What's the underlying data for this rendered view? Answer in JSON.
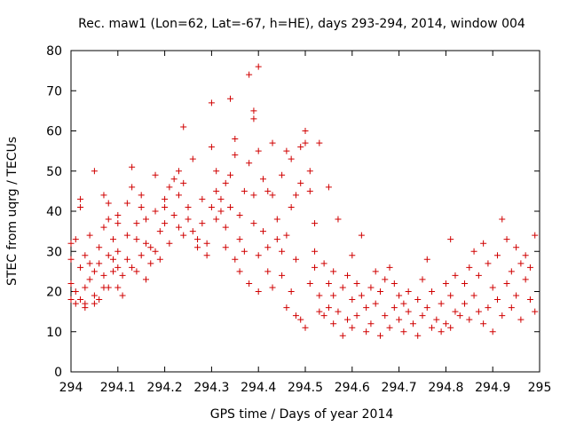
{
  "chart_data": {
    "type": "scatter",
    "title": "Rec. maw1 (Lon=62, Lat=-67, h=HE), days 293-294, 2014, window 004",
    "xlabel": "GPS time / Days of year 2014",
    "ylabel": "STEC from uqrg / TECUs",
    "xlim": [
      294,
      295
    ],
    "ylim": [
      0,
      80
    ],
    "xticks": [
      "294",
      "294.1",
      "294.2",
      "294.3",
      "294.4",
      "294.5",
      "294.6",
      "294.7",
      "294.8",
      "294.9",
      "295"
    ],
    "yticks": [
      "0",
      "10",
      "20",
      "30",
      "40",
      "50",
      "60",
      "70",
      "80"
    ],
    "marker": "+",
    "color": "#d00000",
    "series": [
      {
        "name": "STEC",
        "points": [
          [
            294.0,
            18
          ],
          [
            294.0,
            22
          ],
          [
            294.0,
            28
          ],
          [
            294.0,
            32
          ],
          [
            294.01,
            33
          ],
          [
            294.01,
            17
          ],
          [
            294.01,
            20
          ],
          [
            294.02,
            41
          ],
          [
            294.02,
            43
          ],
          [
            294.02,
            26
          ],
          [
            294.02,
            18
          ],
          [
            294.03,
            16
          ],
          [
            294.03,
            21
          ],
          [
            294.03,
            29
          ],
          [
            294.03,
            17
          ],
          [
            294.04,
            34
          ],
          [
            294.04,
            27
          ],
          [
            294.04,
            23
          ],
          [
            294.05,
            19
          ],
          [
            294.05,
            25
          ],
          [
            294.05,
            50
          ],
          [
            294.05,
            17
          ],
          [
            294.06,
            18
          ],
          [
            294.06,
            27
          ],
          [
            294.06,
            31
          ],
          [
            294.07,
            36
          ],
          [
            294.07,
            44
          ],
          [
            294.07,
            21
          ],
          [
            294.07,
            24
          ],
          [
            294.08,
            42
          ],
          [
            294.08,
            38
          ],
          [
            294.08,
            29
          ],
          [
            294.08,
            21
          ],
          [
            294.09,
            28
          ],
          [
            294.09,
            33
          ],
          [
            294.09,
            25
          ],
          [
            294.1,
            37
          ],
          [
            294.1,
            39
          ],
          [
            294.1,
            30
          ],
          [
            294.1,
            21
          ],
          [
            294.1,
            26
          ],
          [
            294.11,
            24
          ],
          [
            294.11,
            19
          ],
          [
            294.12,
            28
          ],
          [
            294.12,
            34
          ],
          [
            294.12,
            42
          ],
          [
            294.13,
            51
          ],
          [
            294.13,
            46
          ],
          [
            294.13,
            26
          ],
          [
            294.14,
            33
          ],
          [
            294.14,
            25
          ],
          [
            294.14,
            37
          ],
          [
            294.15,
            41
          ],
          [
            294.15,
            44
          ],
          [
            294.15,
            29
          ],
          [
            294.16,
            23
          ],
          [
            294.16,
            32
          ],
          [
            294.16,
            38
          ],
          [
            294.17,
            27
          ],
          [
            294.17,
            31
          ],
          [
            294.18,
            40
          ],
          [
            294.18,
            49
          ],
          [
            294.18,
            30
          ],
          [
            294.19,
            35
          ],
          [
            294.19,
            28
          ],
          [
            294.2,
            37
          ],
          [
            294.2,
            43
          ],
          [
            294.2,
            41
          ],
          [
            294.21,
            32
          ],
          [
            294.21,
            46
          ],
          [
            294.22,
            48
          ],
          [
            294.22,
            39
          ],
          [
            294.23,
            50
          ],
          [
            294.23,
            44
          ],
          [
            294.23,
            36
          ],
          [
            294.24,
            61
          ],
          [
            294.24,
            47
          ],
          [
            294.24,
            34
          ],
          [
            294.25,
            41
          ],
          [
            294.25,
            38
          ],
          [
            294.26,
            53
          ],
          [
            294.26,
            35
          ],
          [
            294.27,
            31
          ],
          [
            294.27,
            33
          ],
          [
            294.28,
            43
          ],
          [
            294.28,
            37
          ],
          [
            294.29,
            29
          ],
          [
            294.29,
            32
          ],
          [
            294.3,
            56
          ],
          [
            294.3,
            67
          ],
          [
            294.3,
            41
          ],
          [
            294.31,
            50
          ],
          [
            294.31,
            45
          ],
          [
            294.31,
            38
          ],
          [
            294.32,
            43
          ],
          [
            294.32,
            40
          ],
          [
            294.33,
            47
          ],
          [
            294.33,
            36
          ],
          [
            294.33,
            31
          ],
          [
            294.34,
            68
          ],
          [
            294.34,
            49
          ],
          [
            294.34,
            41
          ],
          [
            294.35,
            58
          ],
          [
            294.35,
            54
          ],
          [
            294.35,
            28
          ],
          [
            294.36,
            39
          ],
          [
            294.36,
            33
          ],
          [
            294.36,
            25
          ],
          [
            294.37,
            45
          ],
          [
            294.37,
            30
          ],
          [
            294.38,
            74
          ],
          [
            294.38,
            52
          ],
          [
            294.38,
            22
          ],
          [
            294.39,
            63
          ],
          [
            294.39,
            65
          ],
          [
            294.39,
            37
          ],
          [
            294.39,
            44
          ],
          [
            294.4,
            76
          ],
          [
            294.4,
            55
          ],
          [
            294.4,
            29
          ],
          [
            294.4,
            20
          ],
          [
            294.41,
            48
          ],
          [
            294.41,
            35
          ],
          [
            294.42,
            45
          ],
          [
            294.42,
            31
          ],
          [
            294.42,
            25
          ],
          [
            294.43,
            57
          ],
          [
            294.43,
            44
          ],
          [
            294.43,
            21
          ],
          [
            294.44,
            38
          ],
          [
            294.44,
            33
          ],
          [
            294.45,
            49
          ],
          [
            294.45,
            24
          ],
          [
            294.45,
            30
          ],
          [
            294.46,
            55
          ],
          [
            294.46,
            34
          ],
          [
            294.46,
            16
          ],
          [
            294.47,
            53
          ],
          [
            294.47,
            41
          ],
          [
            294.47,
            20
          ],
          [
            294.48,
            44
          ],
          [
            294.48,
            28
          ],
          [
            294.48,
            14
          ],
          [
            294.49,
            56
          ],
          [
            294.49,
            47
          ],
          [
            294.49,
            13
          ],
          [
            294.5,
            60
          ],
          [
            294.5,
            57
          ],
          [
            294.5,
            11
          ],
          [
            294.51,
            50
          ],
          [
            294.51,
            45
          ],
          [
            294.51,
            22
          ],
          [
            294.52,
            37
          ],
          [
            294.52,
            30
          ],
          [
            294.52,
            26
          ],
          [
            294.53,
            57
          ],
          [
            294.53,
            19
          ],
          [
            294.53,
            15
          ],
          [
            294.54,
            27
          ],
          [
            294.54,
            14
          ],
          [
            294.55,
            46
          ],
          [
            294.55,
            22
          ],
          [
            294.55,
            16
          ],
          [
            294.56,
            25
          ],
          [
            294.56,
            19
          ],
          [
            294.56,
            12
          ],
          [
            294.57,
            38
          ],
          [
            294.57,
            15
          ],
          [
            294.58,
            21
          ],
          [
            294.58,
            9
          ],
          [
            294.59,
            24
          ],
          [
            294.59,
            13
          ],
          [
            294.6,
            18
          ],
          [
            294.6,
            29
          ],
          [
            294.6,
            11
          ],
          [
            294.61,
            22
          ],
          [
            294.61,
            14
          ],
          [
            294.62,
            34
          ],
          [
            294.62,
            19
          ],
          [
            294.63,
            16
          ],
          [
            294.63,
            10
          ],
          [
            294.64,
            21
          ],
          [
            294.64,
            12
          ],
          [
            294.65,
            25
          ],
          [
            294.65,
            17
          ],
          [
            294.66,
            20
          ],
          [
            294.66,
            9
          ],
          [
            294.67,
            14
          ],
          [
            294.67,
            23
          ],
          [
            294.68,
            26
          ],
          [
            294.68,
            11
          ],
          [
            294.69,
            22
          ],
          [
            294.69,
            16
          ],
          [
            294.7,
            13
          ],
          [
            294.7,
            19
          ],
          [
            294.71,
            10
          ],
          [
            294.71,
            17
          ],
          [
            294.72,
            15
          ],
          [
            294.72,
            20
          ],
          [
            294.73,
            12
          ],
          [
            294.74,
            18
          ],
          [
            294.74,
            9
          ],
          [
            294.75,
            23
          ],
          [
            294.75,
            14
          ],
          [
            294.76,
            28
          ],
          [
            294.76,
            16
          ],
          [
            294.77,
            11
          ],
          [
            294.77,
            20
          ],
          [
            294.78,
            13
          ],
          [
            294.79,
            17
          ],
          [
            294.79,
            10
          ],
          [
            294.8,
            22
          ],
          [
            294.8,
            12
          ],
          [
            294.81,
            33
          ],
          [
            294.81,
            19
          ],
          [
            294.81,
            11
          ],
          [
            294.82,
            24
          ],
          [
            294.82,
            15
          ],
          [
            294.83,
            14
          ],
          [
            294.84,
            22
          ],
          [
            294.84,
            17
          ],
          [
            294.85,
            26
          ],
          [
            294.85,
            13
          ],
          [
            294.86,
            30
          ],
          [
            294.86,
            19
          ],
          [
            294.87,
            15
          ],
          [
            294.87,
            24
          ],
          [
            294.88,
            32
          ],
          [
            294.88,
            12
          ],
          [
            294.89,
            27
          ],
          [
            294.89,
            16
          ],
          [
            294.9,
            21
          ],
          [
            294.9,
            10
          ],
          [
            294.91,
            29
          ],
          [
            294.91,
            18
          ],
          [
            294.92,
            38
          ],
          [
            294.92,
            14
          ],
          [
            294.93,
            33
          ],
          [
            294.93,
            22
          ],
          [
            294.94,
            25
          ],
          [
            294.94,
            16
          ],
          [
            294.95,
            31
          ],
          [
            294.95,
            19
          ],
          [
            294.96,
            27
          ],
          [
            294.96,
            13
          ],
          [
            294.97,
            29
          ],
          [
            294.97,
            23
          ],
          [
            294.98,
            18
          ],
          [
            294.98,
            26
          ],
          [
            294.99,
            34
          ],
          [
            294.99,
            15
          ]
        ]
      }
    ]
  }
}
